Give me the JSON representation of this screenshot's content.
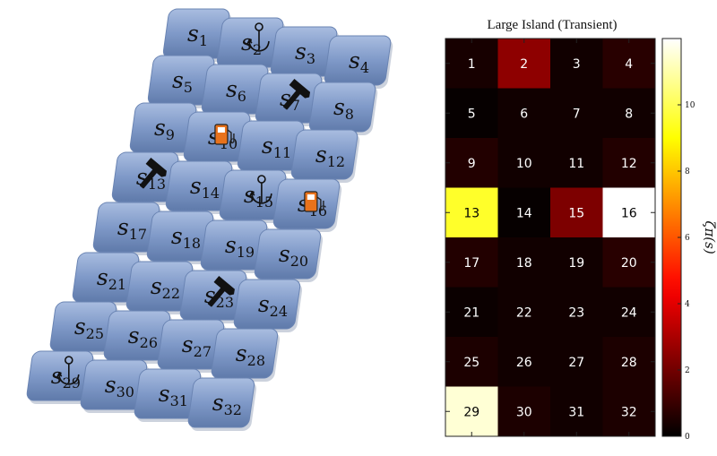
{
  "left": {
    "tiles": [
      {
        "state": "s",
        "sub": "1",
        "icon": ""
      },
      {
        "state": "s",
        "sub": "2",
        "icon": "anchor"
      },
      {
        "state": "s",
        "sub": "3",
        "icon": ""
      },
      {
        "state": "s",
        "sub": "4",
        "icon": ""
      },
      {
        "state": "s",
        "sub": "5",
        "icon": ""
      },
      {
        "state": "s",
        "sub": "6",
        "icon": ""
      },
      {
        "state": "s",
        "sub": "7",
        "icon": "hammer"
      },
      {
        "state": "s",
        "sub": "8",
        "icon": ""
      },
      {
        "state": "s",
        "sub": "9",
        "icon": ""
      },
      {
        "state": "s",
        "sub": "10",
        "icon": "fuel"
      },
      {
        "state": "s",
        "sub": "11",
        "icon": ""
      },
      {
        "state": "s",
        "sub": "12",
        "icon": ""
      },
      {
        "state": "s",
        "sub": "13",
        "icon": "hammer"
      },
      {
        "state": "s",
        "sub": "14",
        "icon": ""
      },
      {
        "state": "s",
        "sub": "15",
        "icon": "anchor"
      },
      {
        "state": "s",
        "sub": "16",
        "icon": "fuel"
      },
      {
        "state": "s",
        "sub": "17",
        "icon": ""
      },
      {
        "state": "s",
        "sub": "18",
        "icon": ""
      },
      {
        "state": "s",
        "sub": "19",
        "icon": ""
      },
      {
        "state": "s",
        "sub": "20",
        "icon": ""
      },
      {
        "state": "s",
        "sub": "21",
        "icon": ""
      },
      {
        "state": "s",
        "sub": "22",
        "icon": ""
      },
      {
        "state": "s",
        "sub": "23",
        "icon": "hammer"
      },
      {
        "state": "s",
        "sub": "24",
        "icon": ""
      },
      {
        "state": "s",
        "sub": "25",
        "icon": ""
      },
      {
        "state": "s",
        "sub": "26",
        "icon": ""
      },
      {
        "state": "s",
        "sub": "27",
        "icon": ""
      },
      {
        "state": "s",
        "sub": "28",
        "icon": ""
      },
      {
        "state": "s",
        "sub": "29",
        "icon": "anchor"
      },
      {
        "state": "s",
        "sub": "30",
        "icon": ""
      },
      {
        "state": "s",
        "sub": "31",
        "icon": ""
      },
      {
        "state": "s",
        "sub": "32",
        "icon": ""
      }
    ],
    "colors": {
      "tile": "#7f99c8",
      "tile_dark": "#5d77a6",
      "tile_light": "#b7c8e6",
      "fuel": "#e8721c"
    }
  },
  "chart_data": {
    "type": "heatmap",
    "title": "Large Island (Transient)",
    "rows": 8,
    "cols": 4,
    "cell_labels": [
      "1",
      "2",
      "3",
      "4",
      "5",
      "6",
      "7",
      "8",
      "9",
      "10",
      "11",
      "12",
      "13",
      "14",
      "15",
      "16",
      "17",
      "18",
      "19",
      "20",
      "21",
      "22",
      "23",
      "24",
      "25",
      "26",
      "27",
      "28",
      "29",
      "30",
      "31",
      "32"
    ],
    "values": [
      [
        0.4,
        2.5,
        0.3,
        0.7
      ],
      [
        0.1,
        0.3,
        0.3,
        0.3
      ],
      [
        0.6,
        0.3,
        0.3,
        0.6
      ],
      [
        9.5,
        0.1,
        2.2,
        12.0
      ],
      [
        0.6,
        0.3,
        0.3,
        0.7
      ],
      [
        0.2,
        0.3,
        0.3,
        0.3
      ],
      [
        0.5,
        0.3,
        0.3,
        0.5
      ],
      [
        11.5,
        0.5,
        0.3,
        0.5
      ]
    ],
    "colorbar": {
      "min": 0,
      "max": 12,
      "ticks": [
        0,
        2,
        4,
        6,
        8,
        10
      ],
      "label": "ζπ(s)",
      "colormap": "hot"
    }
  }
}
